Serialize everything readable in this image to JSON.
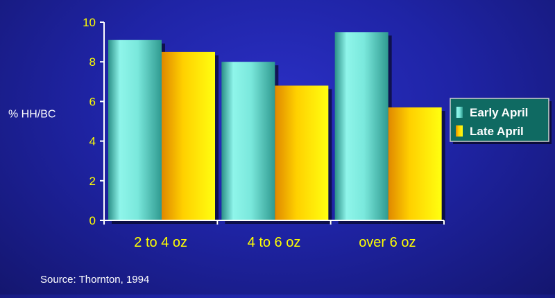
{
  "chart_data": {
    "type": "bar",
    "title": "",
    "xlabel": "",
    "ylabel": "% HH/BC",
    "ylim": [
      0,
      10
    ],
    "yticks": [
      0,
      2,
      4,
      6,
      8,
      10
    ],
    "categories": [
      "2 to 4 oz",
      "4 to 6 oz",
      "over 6 oz"
    ],
    "series": [
      {
        "name": "Early April",
        "values": [
          9.1,
          8.0,
          9.5
        ],
        "color": "#6ee8d6"
      },
      {
        "name": "Late April",
        "values": [
          8.5,
          6.8,
          5.7
        ],
        "color": "#ffe000"
      }
    ],
    "legend_position": "right",
    "grid": false
  },
  "colors": {
    "axis": "#ffffff",
    "tick_label": "#ffff00",
    "legend_background": "#0f6a62",
    "background": "#2228b0"
  },
  "footnote": {
    "source": "Source: Thornton, 1994"
  }
}
